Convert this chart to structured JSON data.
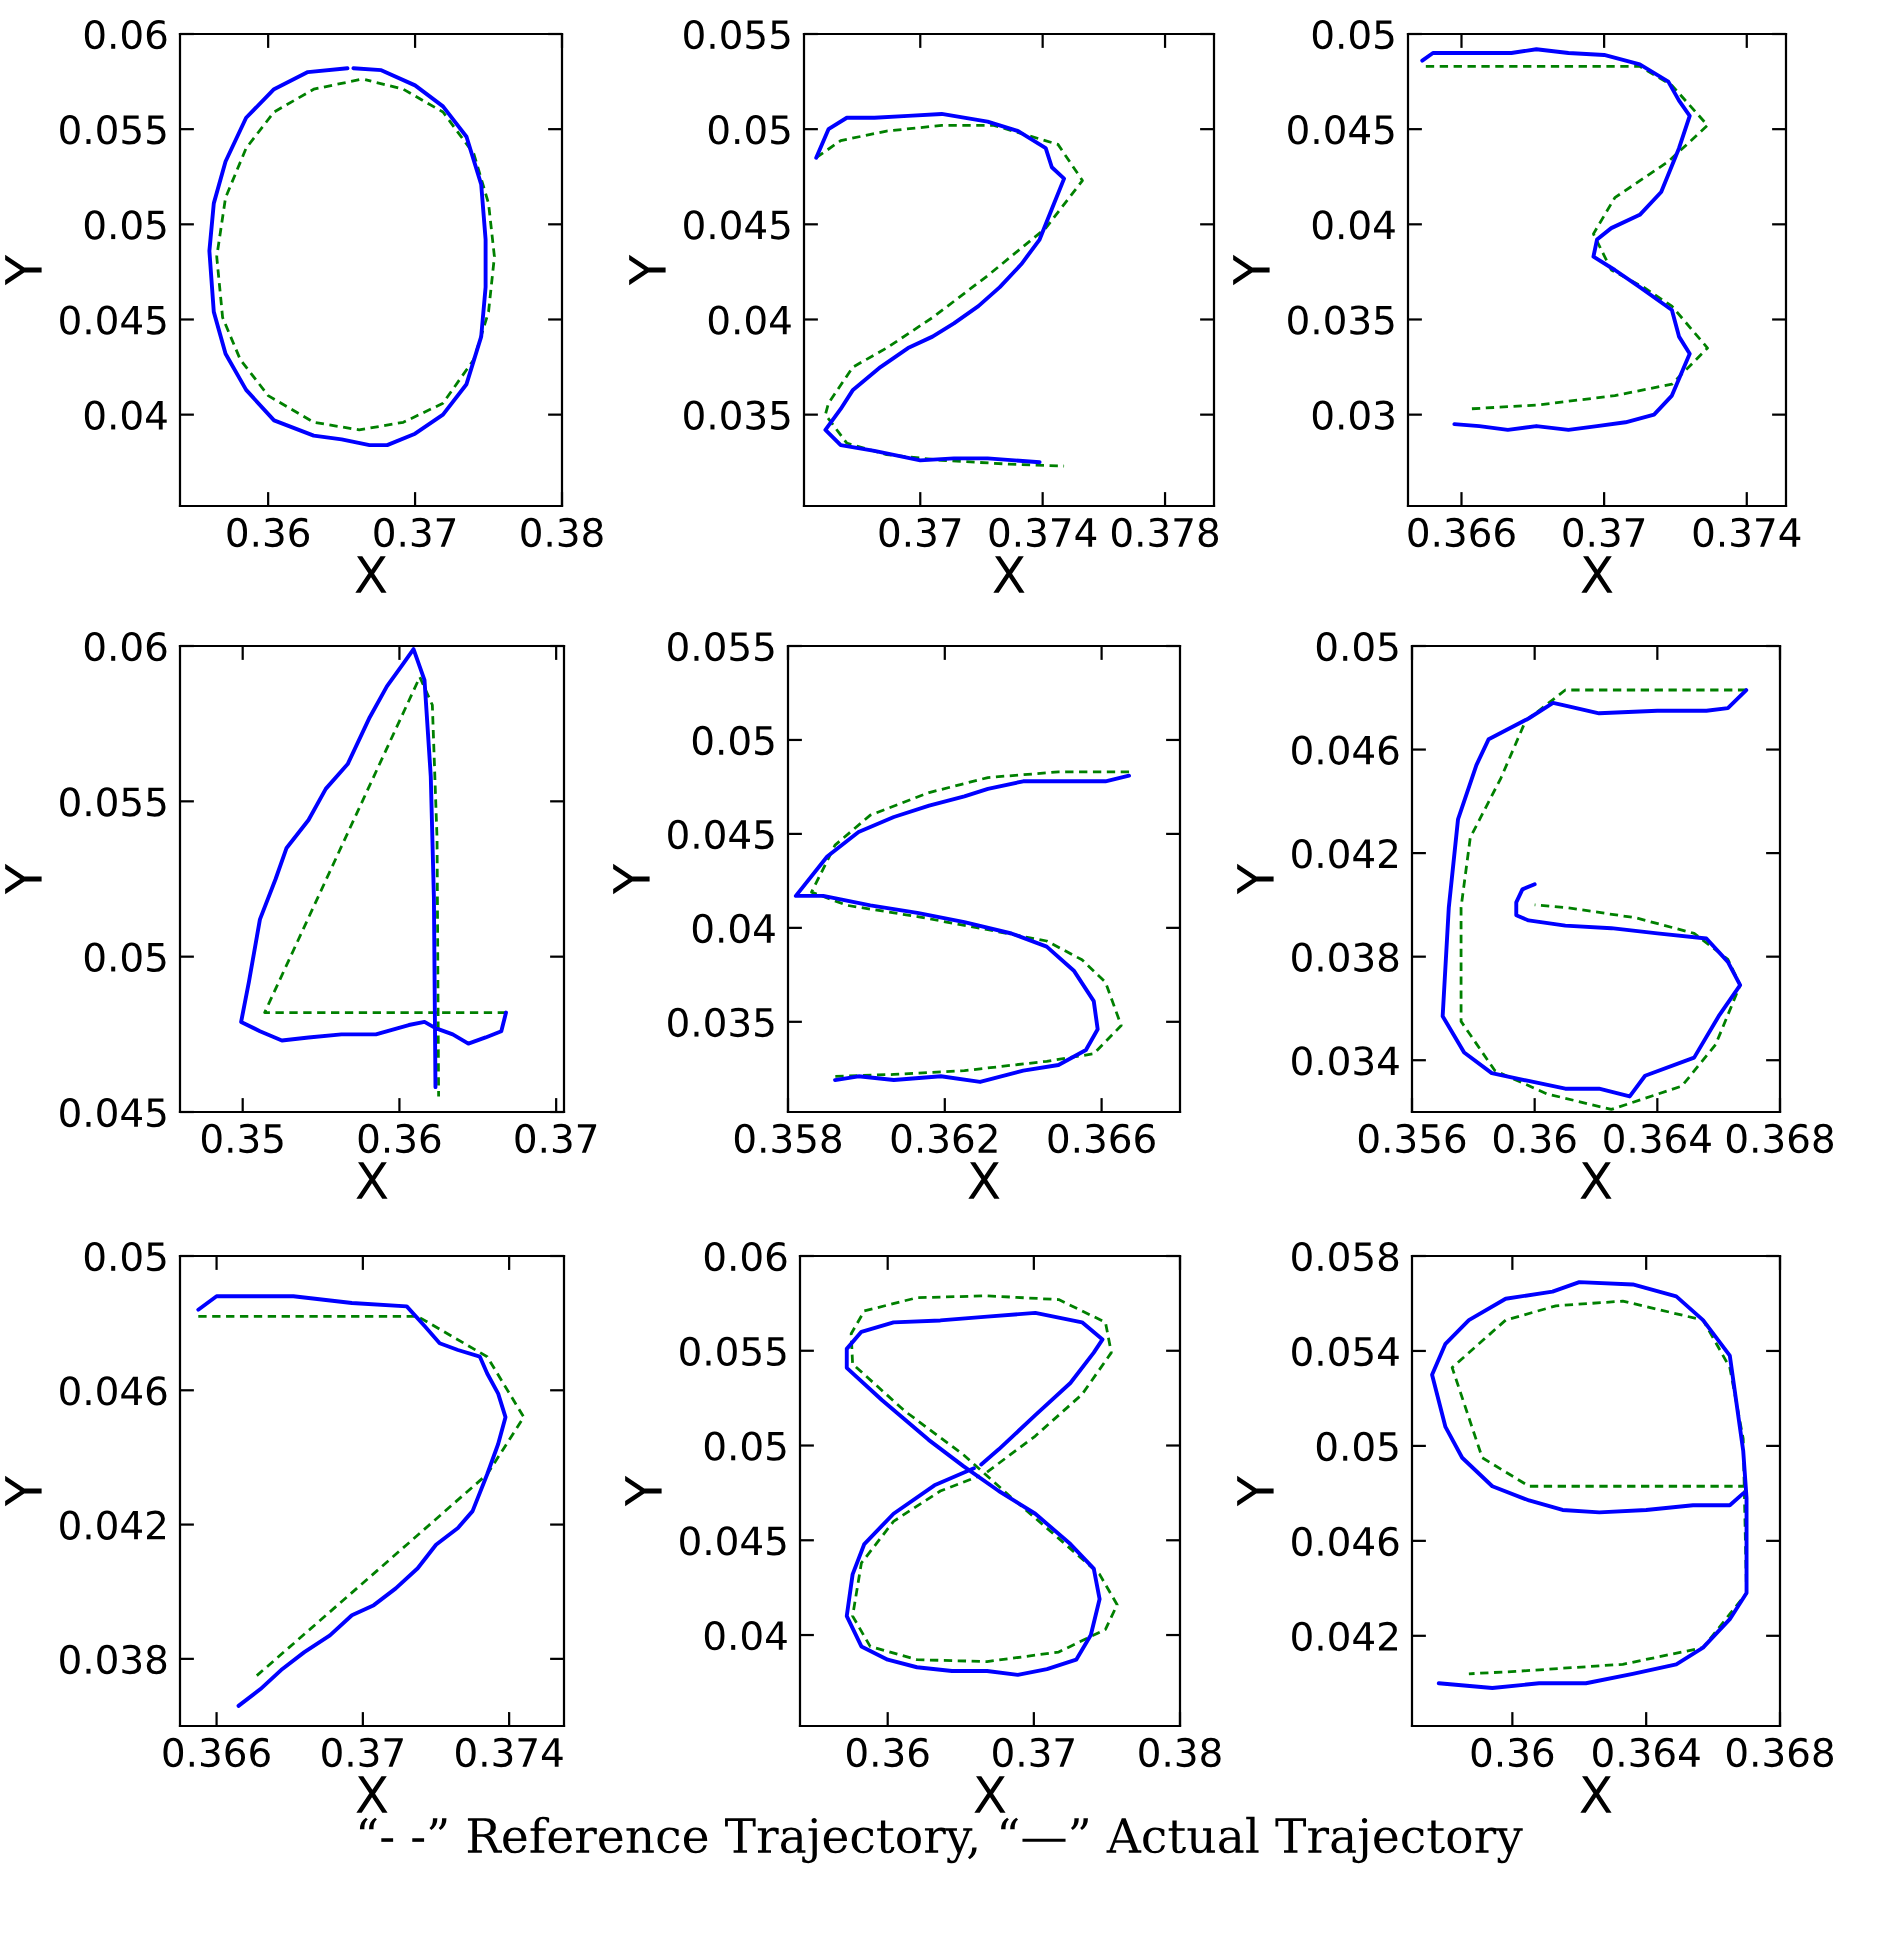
{
  "chart_data": [
    {
      "type": "line",
      "xlabel": "X",
      "ylabel": "Y",
      "xlim": [
        0.354,
        0.38
      ],
      "ylim": [
        0.0352,
        0.06
      ],
      "xticks": [
        0.36,
        0.37,
        0.38
      ],
      "yticks": [
        0.04,
        0.045,
        0.05,
        0.055,
        0.06
      ],
      "series": [
        {
          "color": "#008000",
          "line_style": "dashed",
          "x": [
            0.3662,
            0.3631,
            0.3604,
            0.3585,
            0.3571,
            0.3565,
            0.3569,
            0.3581,
            0.36,
            0.3631,
            0.3662,
            0.3692,
            0.3719,
            0.374,
            0.375,
            0.3754,
            0.375,
            0.374,
            0.3719,
            0.3692,
            0.3666
          ],
          "values": [
            0.0576,
            0.0571,
            0.0559,
            0.054,
            0.0514,
            0.0483,
            0.0451,
            0.0429,
            0.041,
            0.0396,
            0.0392,
            0.0396,
            0.0406,
            0.0429,
            0.0454,
            0.0483,
            0.0511,
            0.0537,
            0.0559,
            0.0571,
            0.0576
          ]
        },
        {
          "color": "#0000ff",
          "line_style": "solid",
          "x": [
            0.3654,
            0.3627,
            0.3604,
            0.3585,
            0.3571,
            0.3563,
            0.356,
            0.3563,
            0.3571,
            0.3585,
            0.3604,
            0.3631,
            0.365,
            0.3669,
            0.3681,
            0.37,
            0.3719,
            0.3735,
            0.3745,
            0.3748,
            0.3748,
            0.3745,
            0.3735,
            0.3719,
            0.37,
            0.3677,
            0.3658
          ],
          "values": [
            0.0582,
            0.058,
            0.0571,
            0.0556,
            0.0533,
            0.0511,
            0.0486,
            0.0454,
            0.0432,
            0.0413,
            0.0397,
            0.0389,
            0.0387,
            0.0384,
            0.0384,
            0.039,
            0.04,
            0.0416,
            0.0441,
            0.0467,
            0.0492,
            0.0521,
            0.0546,
            0.0562,
            0.0573,
            0.0581,
            0.0582
          ]
        }
      ]
    },
    {
      "type": "line",
      "xlabel": "X",
      "ylabel": "Y",
      "xlim": [
        0.3662,
        0.3796
      ],
      "ylim": [
        0.0302,
        0.055
      ],
      "xticks": [
        0.37,
        0.374,
        0.378
      ],
      "yticks": [
        0.035,
        0.04,
        0.045,
        0.05,
        0.055
      ],
      "series": [
        {
          "color": "#008000",
          "line_style": "dashed",
          "x": [
            0.3666,
            0.3674,
            0.3689,
            0.3707,
            0.3724,
            0.3745,
            0.3753,
            0.3741,
            0.3722,
            0.3704,
            0.3689,
            0.3678,
            0.367,
            0.3669,
            0.3676,
            0.3689,
            0.3707,
            0.3729,
            0.3747
          ],
          "values": [
            0.0485,
            0.0494,
            0.0499,
            0.0502,
            0.0502,
            0.0492,
            0.0473,
            0.0448,
            0.0423,
            0.0401,
            0.0385,
            0.0375,
            0.0356,
            0.035,
            0.0335,
            0.0329,
            0.0326,
            0.0324,
            0.0323
          ]
        },
        {
          "color": "#0000ff",
          "line_style": "solid",
          "x": [
            0.3666,
            0.367,
            0.3676,
            0.3685,
            0.3696,
            0.3707,
            0.3722,
            0.3732,
            0.3741,
            0.3743,
            0.3747,
            0.3743,
            0.3739,
            0.3733,
            0.3726,
            0.3719,
            0.3711,
            0.3704,
            0.3696,
            0.3687,
            0.3678,
            0.3674,
            0.3669,
            0.3674,
            0.3685,
            0.37,
            0.3711,
            0.3722,
            0.3739
          ],
          "values": [
            0.0485,
            0.05,
            0.0506,
            0.0506,
            0.0507,
            0.0508,
            0.0504,
            0.0499,
            0.049,
            0.048,
            0.0474,
            0.0458,
            0.0442,
            0.0429,
            0.0417,
            0.0407,
            0.0398,
            0.0391,
            0.0385,
            0.0375,
            0.0363,
            0.0353,
            0.0342,
            0.0334,
            0.0331,
            0.0326,
            0.0327,
            0.0327,
            0.0325
          ]
        }
      ]
    },
    {
      "type": "line",
      "xlabel": "X",
      "ylabel": "Y",
      "xlim": [
        0.3645,
        0.3751
      ],
      "ylim": [
        0.0252,
        0.05
      ],
      "xticks": [
        0.366,
        0.37,
        0.374
      ],
      "yticks": [
        0.03,
        0.035,
        0.04,
        0.045,
        0.05
      ],
      "series": [
        {
          "color": "#008000",
          "line_style": "dashed",
          "x": [
            0.365,
            0.3665,
            0.3687,
            0.371,
            0.3719,
            0.3729,
            0.3718,
            0.3703,
            0.3697,
            0.3702,
            0.3711,
            0.3719,
            0.3729,
            0.3719,
            0.3703,
            0.3681,
            0.3662
          ],
          "values": [
            0.0483,
            0.0483,
            0.0483,
            0.0483,
            0.0473,
            0.0452,
            0.0433,
            0.0414,
            0.0395,
            0.0376,
            0.0367,
            0.0357,
            0.0335,
            0.0316,
            0.031,
            0.0305,
            0.0303
          ]
        },
        {
          "color": "#0000ff",
          "line_style": "solid",
          "x": [
            0.3649,
            0.3652,
            0.3662,
            0.3674,
            0.3681,
            0.369,
            0.37,
            0.371,
            0.3718,
            0.3721,
            0.3724,
            0.3721,
            0.3716,
            0.371,
            0.3702,
            0.3698,
            0.3697,
            0.3703,
            0.371,
            0.3719,
            0.3721,
            0.3724,
            0.3719,
            0.3714,
            0.3706,
            0.3698,
            0.369,
            0.3681,
            0.3673,
            0.3665,
            0.3658
          ],
          "values": [
            0.0486,
            0.049,
            0.049,
            0.049,
            0.0492,
            0.049,
            0.0489,
            0.0484,
            0.0475,
            0.0465,
            0.0457,
            0.044,
            0.0417,
            0.0405,
            0.0398,
            0.0392,
            0.0383,
            0.0376,
            0.0367,
            0.0355,
            0.0341,
            0.0332,
            0.031,
            0.03,
            0.0296,
            0.0294,
            0.0292,
            0.0294,
            0.0292,
            0.0294,
            0.0295
          ]
        }
      ]
    },
    {
      "type": "line",
      "xlabel": "X",
      "ylabel": "Y",
      "xlim": [
        0.346,
        0.3705
      ],
      "ylim": [
        0.045,
        0.06
      ],
      "xticks": [
        0.35,
        0.36,
        0.37
      ],
      "yticks": [
        0.045,
        0.05,
        0.055,
        0.06
      ],
      "series": [
        {
          "color": "#008000",
          "line_style": "dashed",
          "x": [
            0.3668,
            0.3514,
            0.3613,
            0.3621,
            0.3624,
            0.3625
          ],
          "values": [
            0.0482,
            0.0482,
            0.059,
            0.0581,
            0.0538,
            0.0455
          ]
        },
        {
          "color": "#0000ff",
          "line_style": "solid",
          "x": [
            0.3668,
            0.3665,
            0.3655,
            0.3644,
            0.3634,
            0.3623,
            0.3616,
            0.3606,
            0.3585,
            0.3563,
            0.3542,
            0.3525,
            0.3511,
            0.3499,
            0.3504,
            0.3511,
            0.3521,
            0.3528,
            0.3542,
            0.3553,
            0.3567,
            0.3581,
            0.3592,
            0.3602,
            0.3609,
            0.3616,
            0.362,
            0.3622,
            0.3623
          ],
          "values": [
            0.0482,
            0.0476,
            0.0474,
            0.0472,
            0.0475,
            0.0477,
            0.0479,
            0.0478,
            0.0475,
            0.0475,
            0.0474,
            0.0473,
            0.0476,
            0.0479,
            0.0492,
            0.0512,
            0.0525,
            0.0535,
            0.0544,
            0.0554,
            0.0562,
            0.0577,
            0.0587,
            0.0594,
            0.0599,
            0.0589,
            0.0558,
            0.0519,
            0.0458
          ]
        }
      ]
    },
    {
      "type": "line",
      "xlabel": "X",
      "ylabel": "Y",
      "xlim": [
        0.358,
        0.368
      ],
      "ylim": [
        0.0302,
        0.055
      ],
      "xticks": [
        0.358,
        0.362,
        0.366
      ],
      "yticks": [
        0.035,
        0.04,
        0.045,
        0.05,
        0.055
      ],
      "series": [
        {
          "color": "#008000",
          "line_style": "dashed",
          "x": [
            0.3667,
            0.3649,
            0.3631,
            0.3616,
            0.3601,
            0.3592,
            0.3586,
            0.3595,
            0.3613,
            0.3631,
            0.3646,
            0.3655,
            0.3661,
            0.3665,
            0.3658,
            0.3646,
            0.3625,
            0.3607,
            0.3592
          ],
          "values": [
            0.0483,
            0.0483,
            0.048,
            0.0472,
            0.046,
            0.0444,
            0.0419,
            0.0412,
            0.0406,
            0.0399,
            0.0393,
            0.0383,
            0.0371,
            0.0348,
            0.0333,
            0.0329,
            0.0324,
            0.0322,
            0.0321
          ]
        },
        {
          "color": "#0000ff",
          "line_style": "solid",
          "x": [
            0.3667,
            0.3661,
            0.3649,
            0.364,
            0.3631,
            0.3625,
            0.3616,
            0.3607,
            0.3598,
            0.359,
            0.3582,
            0.3589,
            0.3601,
            0.3613,
            0.3625,
            0.3637,
            0.3646,
            0.3653,
            0.3658,
            0.3659,
            0.3656,
            0.3649,
            0.364,
            0.3629,
            0.3619,
            0.3607,
            0.3598,
            0.3592
          ],
          "values": [
            0.0481,
            0.0478,
            0.0478,
            0.0478,
            0.0474,
            0.047,
            0.0465,
            0.0459,
            0.0451,
            0.0438,
            0.0417,
            0.0417,
            0.0412,
            0.0408,
            0.0403,
            0.0397,
            0.039,
            0.0377,
            0.0361,
            0.0346,
            0.0335,
            0.0327,
            0.0324,
            0.0318,
            0.0321,
            0.0319,
            0.0321,
            0.0319
          ]
        }
      ]
    },
    {
      "type": "line",
      "xlabel": "X",
      "ylabel": "Y",
      "xlim": [
        0.356,
        0.368
      ],
      "ylim": [
        0.032,
        0.05
      ],
      "xticks": [
        0.356,
        0.36,
        0.364,
        0.368
      ],
      "yticks": [
        0.034,
        0.038,
        0.042,
        0.046,
        0.05
      ],
      "series": [
        {
          "color": "#008000",
          "line_style": "dashed",
          "x": [
            0.3669,
            0.364,
            0.361,
            0.3597,
            0.3589,
            0.3579,
            0.3576,
            0.3576,
            0.3587,
            0.3604,
            0.3625,
            0.3648,
            0.3659,
            0.3667,
            0.3663,
            0.3652,
            0.3633,
            0.361,
            0.36
          ],
          "values": [
            0.0483,
            0.0483,
            0.0483,
            0.0471,
            0.0449,
            0.0426,
            0.0399,
            0.0355,
            0.0336,
            0.0327,
            0.0321,
            0.033,
            0.0346,
            0.0369,
            0.0379,
            0.0389,
            0.0395,
            0.0399,
            0.04
          ]
        },
        {
          "color": "#0000ff",
          "line_style": "solid",
          "x": [
            0.3669,
            0.3663,
            0.3656,
            0.364,
            0.3621,
            0.361,
            0.3606,
            0.3598,
            0.3585,
            0.3581,
            0.3575,
            0.3572,
            0.357,
            0.3577,
            0.3586,
            0.3598,
            0.361,
            0.3621,
            0.3631,
            0.3636,
            0.3652,
            0.366,
            0.3667,
            0.3663,
            0.3656,
            0.364,
            0.3625,
            0.361,
            0.3598,
            0.3594,
            0.3594,
            0.3596,
            0.36
          ],
          "values": [
            0.0483,
            0.0476,
            0.0475,
            0.0475,
            0.0474,
            0.0477,
            0.0478,
            0.0472,
            0.0464,
            0.0454,
            0.0433,
            0.0399,
            0.0357,
            0.0343,
            0.0335,
            0.0332,
            0.0329,
            0.0329,
            0.0326,
            0.0334,
            0.0341,
            0.0357,
            0.0369,
            0.0378,
            0.0387,
            0.0389,
            0.0391,
            0.0392,
            0.0394,
            0.0396,
            0.0401,
            0.0406,
            0.0408
          ]
        }
      ]
    },
    {
      "type": "line",
      "xlabel": "X",
      "ylabel": "Y",
      "xlim": [
        0.365,
        0.3755
      ],
      "ylim": [
        0.036,
        0.05
      ],
      "xticks": [
        0.366,
        0.37,
        0.374
      ],
      "yticks": [
        0.038,
        0.042,
        0.046,
        0.05
      ],
      "series": [
        {
          "color": "#008000",
          "line_style": "dashed",
          "x": [
            0.3655,
            0.3672,
            0.3715,
            0.3734,
            0.3744,
            0.3734,
            0.3712,
            0.3691,
            0.3671
          ],
          "values": [
            0.0482,
            0.0482,
            0.0482,
            0.047,
            0.0452,
            0.0435,
            0.0414,
            0.0394,
            0.0375
          ]
        },
        {
          "color": "#0000ff",
          "line_style": "solid",
          "x": [
            0.3655,
            0.366,
            0.3666,
            0.3681,
            0.3697,
            0.3712,
            0.3717,
            0.3721,
            0.3726,
            0.3732,
            0.3734,
            0.3737,
            0.3739,
            0.3737,
            0.3734,
            0.373,
            0.3726,
            0.372,
            0.3715,
            0.3709,
            0.3703,
            0.3697,
            0.3691,
            0.3684,
            0.3678,
            0.3672,
            0.3666
          ],
          "values": [
            0.0484,
            0.0488,
            0.0488,
            0.0488,
            0.0486,
            0.0485,
            0.0479,
            0.0474,
            0.0472,
            0.047,
            0.0465,
            0.0459,
            0.0452,
            0.0444,
            0.0435,
            0.0424,
            0.0419,
            0.0414,
            0.0407,
            0.0401,
            0.0396,
            0.0393,
            0.0387,
            0.0382,
            0.0377,
            0.0371,
            0.0366
          ]
        }
      ]
    },
    {
      "type": "line",
      "xlabel": "X",
      "ylabel": "Y",
      "xlim": [
        0.354,
        0.38
      ],
      "ylim": [
        0.0352,
        0.06
      ],
      "xticks": [
        0.36,
        0.37,
        0.38
      ],
      "yticks": [
        0.04,
        0.045,
        0.05,
        0.055,
        0.06
      ],
      "series": [
        {
          "color": "#008000",
          "line_style": "dashed",
          "x": [
            0.3668,
            0.3701,
            0.3733,
            0.3753,
            0.3749,
            0.3717,
            0.3668,
            0.362,
            0.3584,
            0.3575,
            0.3576,
            0.3612,
            0.3652,
            0.3684,
            0.3717,
            0.3745,
            0.3757,
            0.3749,
            0.3717,
            0.3668,
            0.362,
            0.3588,
            0.3576,
            0.3582,
            0.3604,
            0.3636,
            0.3663
          ],
          "values": [
            0.0486,
            0.0505,
            0.0527,
            0.0549,
            0.0565,
            0.0577,
            0.0579,
            0.0578,
            0.0571,
            0.0559,
            0.0543,
            0.0518,
            0.0495,
            0.0473,
            0.0451,
            0.0432,
            0.0416,
            0.0403,
            0.0391,
            0.0386,
            0.0387,
            0.0394,
            0.041,
            0.0438,
            0.046,
            0.0476,
            0.0484
          ]
        },
        {
          "color": "#0000ff",
          "line_style": "solid",
          "x": [
            0.3664,
            0.3676,
            0.3701,
            0.3725,
            0.3741,
            0.3747,
            0.3733,
            0.3701,
            0.3668,
            0.3636,
            0.3604,
            0.3582,
            0.3572,
            0.3572,
            0.3596,
            0.3628,
            0.3652,
            0.3676,
            0.3701,
            0.3725,
            0.3741,
            0.3745,
            0.3739,
            0.3729,
            0.3709,
            0.3689,
            0.3668,
            0.3644,
            0.362,
            0.36,
            0.3582,
            0.3572,
            0.3576,
            0.3584,
            0.3604,
            0.3632,
            0.3659
          ],
          "values": [
            0.049,
            0.0498,
            0.0516,
            0.0533,
            0.0549,
            0.0556,
            0.0565,
            0.057,
            0.0568,
            0.0566,
            0.0565,
            0.056,
            0.0551,
            0.0541,
            0.0524,
            0.0503,
            0.0489,
            0.0476,
            0.0464,
            0.0448,
            0.0435,
            0.0419,
            0.04,
            0.0387,
            0.0382,
            0.0379,
            0.0381,
            0.0381,
            0.0383,
            0.0387,
            0.0394,
            0.041,
            0.0432,
            0.0448,
            0.0464,
            0.0479,
            0.0488
          ]
        }
      ]
    },
    {
      "type": "line",
      "xlabel": "X",
      "ylabel": "Y",
      "xlim": [
        0.357,
        0.368
      ],
      "ylim": [
        0.0382,
        0.058
      ],
      "xticks": [
        0.36,
        0.364,
        0.368
      ],
      "yticks": [
        0.042,
        0.046,
        0.05,
        0.054,
        0.058
      ],
      "annotations": [
        "“- -” Reference Trajectory, “—” Actual Trajectory"
      ],
      "series": [
        {
          "color": "#008000",
          "line_style": "dashed",
          "x": [
            0.367,
            0.365,
            0.3605,
            0.3591,
            0.3582,
            0.3598,
            0.3613,
            0.3633,
            0.3657,
            0.3665,
            0.3669,
            0.367,
            0.3657,
            0.3633,
            0.3601,
            0.3587
          ],
          "values": [
            0.0483,
            0.0483,
            0.0483,
            0.0495,
            0.0533,
            0.0553,
            0.0559,
            0.0561,
            0.0553,
            0.0533,
            0.0503,
            0.0438,
            0.0415,
            0.0408,
            0.0405,
            0.0404
          ]
        },
        {
          "color": "#0000ff",
          "line_style": "solid",
          "x": [
            0.3669,
            0.3665,
            0.3654,
            0.364,
            0.3626,
            0.3615,
            0.3605,
            0.3594,
            0.3585,
            0.358,
            0.3576,
            0.358,
            0.3587,
            0.3598,
            0.3612,
            0.362,
            0.3636,
            0.3649,
            0.3657,
            0.3665,
            0.3667,
            0.3669,
            0.367,
            0.367,
            0.367,
            0.3665,
            0.3657,
            0.3649,
            0.3636,
            0.3622,
            0.3608,
            0.3594,
            0.3578
          ],
          "values": [
            0.048,
            0.0475,
            0.0475,
            0.0473,
            0.0472,
            0.0473,
            0.0477,
            0.0483,
            0.0495,
            0.0508,
            0.053,
            0.0543,
            0.0553,
            0.0562,
            0.0565,
            0.0569,
            0.0568,
            0.0563,
            0.0553,
            0.0538,
            0.0518,
            0.0498,
            0.0478,
            0.0458,
            0.0438,
            0.0427,
            0.0415,
            0.0408,
            0.0404,
            0.04,
            0.04,
            0.0398,
            0.04
          ]
        }
      ]
    }
  ]
}
